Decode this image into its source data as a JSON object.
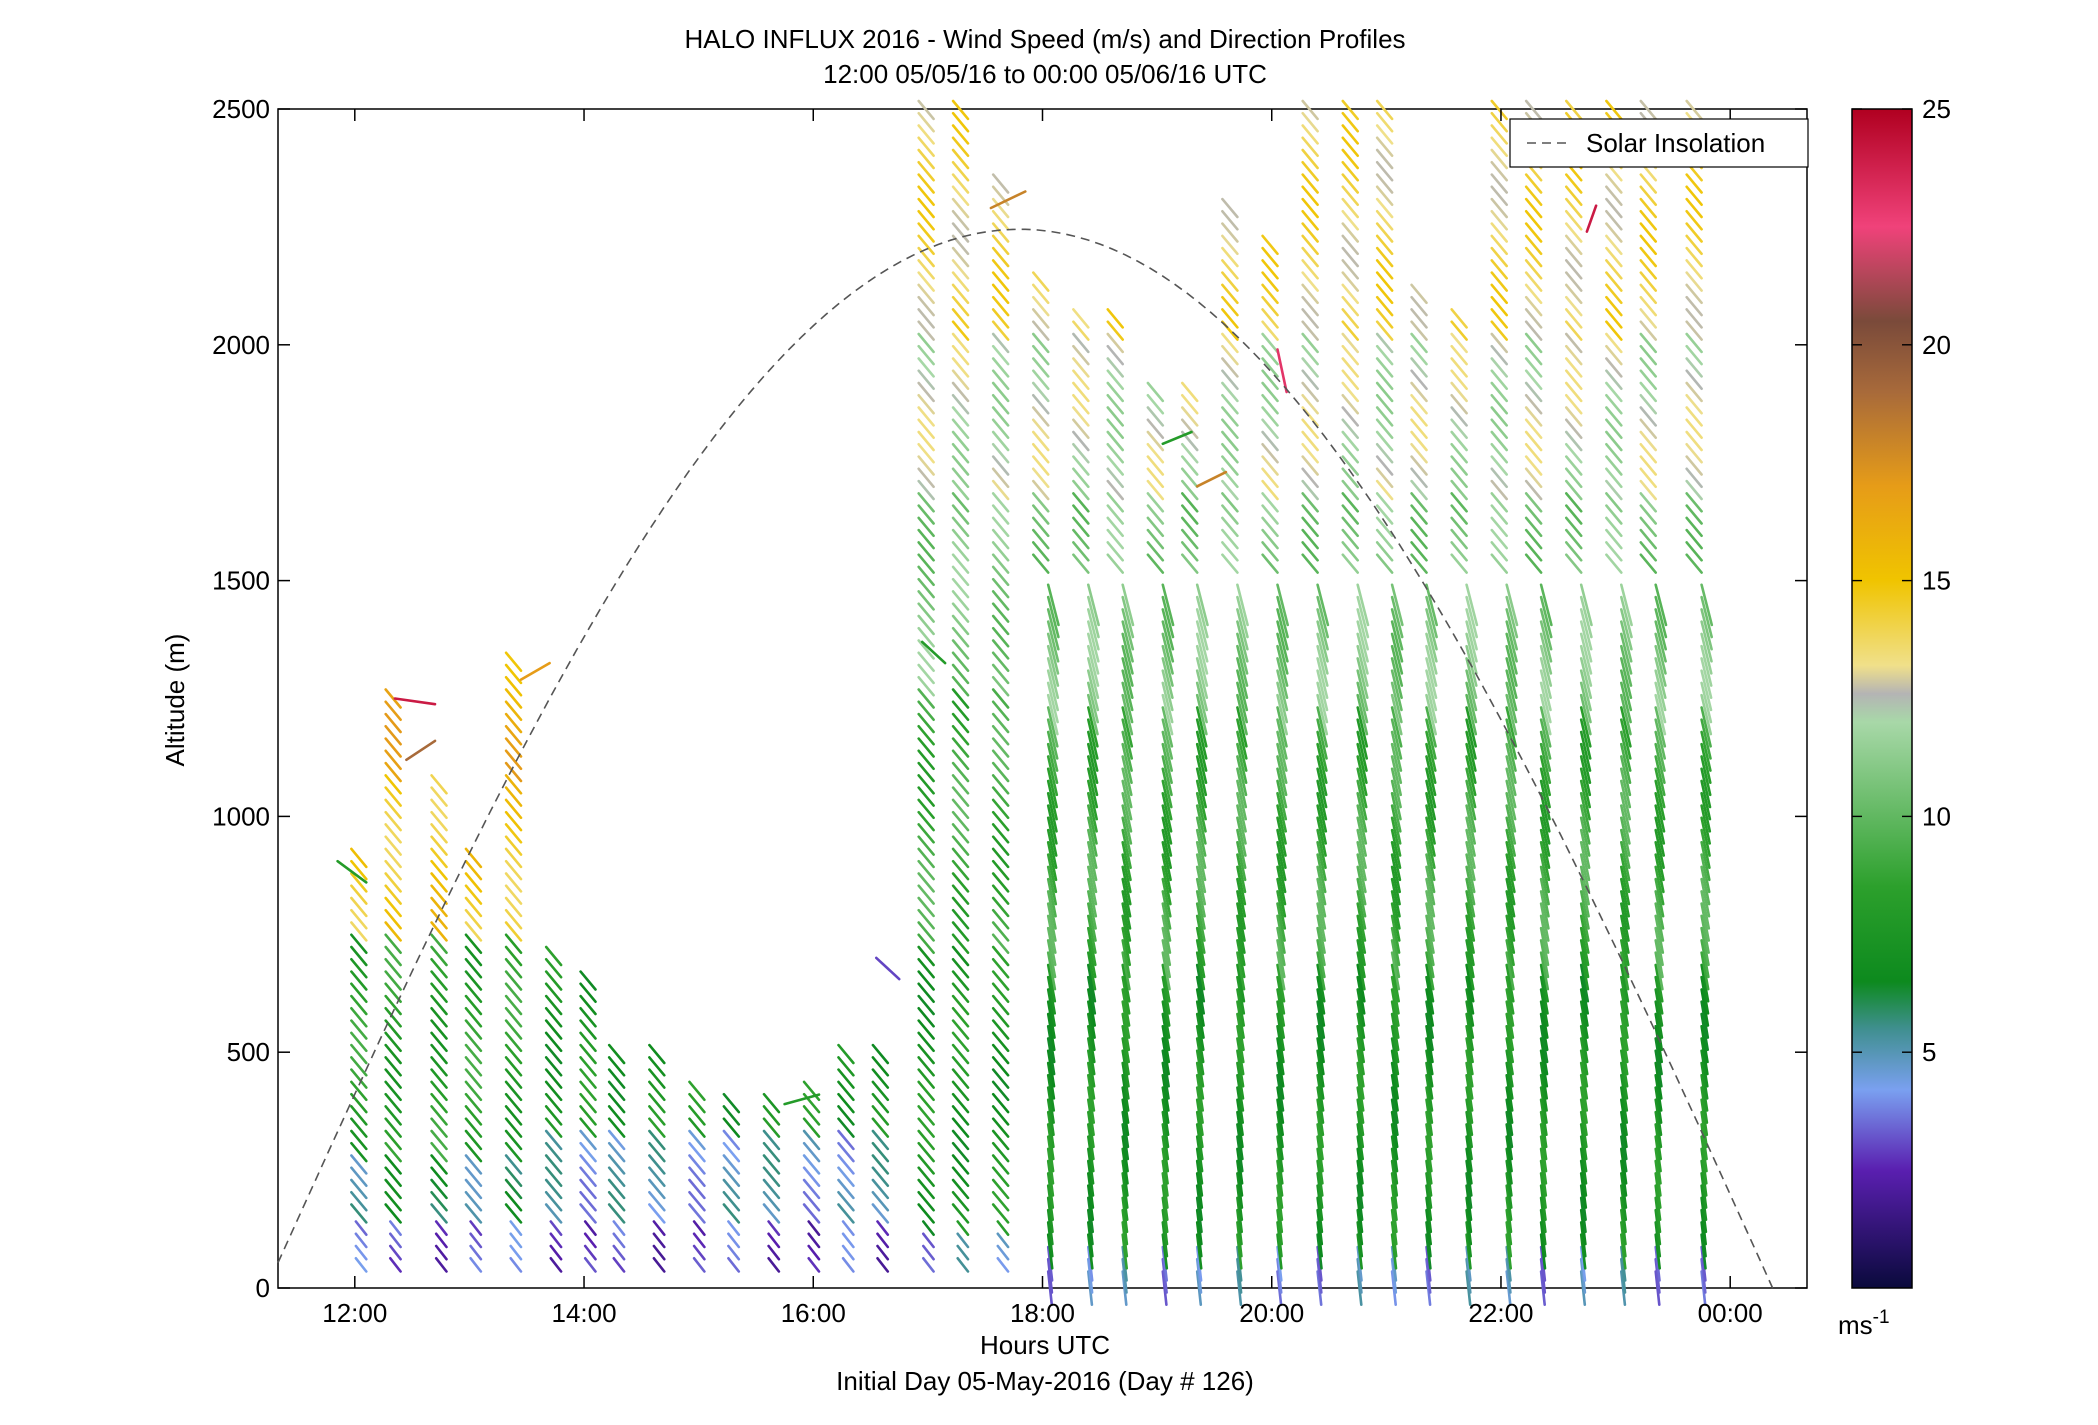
{
  "chart_data": {
    "type": "scatter",
    "title": "HALO INFLUX 2016 - Wind Speed (m/s) and Direction Profiles",
    "subtitle": "12:00 05/05/16 to 00:00 05/06/16  UTC",
    "xlabel": "Hours UTC",
    "xlabel_sub": "Initial Day 05-May-2016 (Day # 126)",
    "ylabel": "Altitude (m)",
    "xlim": [
      11.33,
      24.67
    ],
    "ylim": [
      0,
      2500
    ],
    "x_ticks": [
      12,
      14,
      16,
      18,
      20,
      22,
      24
    ],
    "x_tick_labels": [
      "12:00",
      "14:00",
      "16:00",
      "18:00",
      "20:00",
      "22:00",
      "00:00"
    ],
    "y_ticks": [
      0,
      500,
      1000,
      1500,
      2000,
      2500
    ],
    "y_tick_labels": [
      "0",
      "500",
      "1000",
      "1500",
      "2000",
      "2500"
    ],
    "colorbar": {
      "range": [
        0,
        25
      ],
      "ticks": [
        5,
        10,
        15,
        20,
        25
      ],
      "tick_labels": [
        "5",
        "10",
        "15",
        "20",
        "25"
      ],
      "unit_label": "ms",
      "unit_exponent": "-1",
      "stops": [
        {
          "v": 0,
          "c": "#0a0a3c"
        },
        {
          "v": 2.5,
          "c": "#5a1fb0"
        },
        {
          "v": 4.2,
          "c": "#7aa0f0"
        },
        {
          "v": 5.5,
          "c": "#3f8f8f"
        },
        {
          "v": 6.5,
          "c": "#0d8a1e"
        },
        {
          "v": 8.5,
          "c": "#2ca02c"
        },
        {
          "v": 12.0,
          "c": "#a8d8a8"
        },
        {
          "v": 12.6,
          "c": "#b4b4b4"
        },
        {
          "v": 13.2,
          "c": "#f0e08a"
        },
        {
          "v": 15.0,
          "c": "#f0c400"
        },
        {
          "v": 17.0,
          "c": "#e69c18"
        },
        {
          "v": 19.0,
          "c": "#a86a3a"
        },
        {
          "v": 20.5,
          "c": "#7a4a3a"
        },
        {
          "v": 22.5,
          "c": "#f0427a"
        },
        {
          "v": 25.0,
          "c": "#b00020"
        }
      ]
    },
    "legend": {
      "position": "top-right",
      "entries": [
        "Solar Insolation"
      ]
    },
    "solar_insolation": {
      "peak_x": 17.8,
      "peak_y": 2245,
      "x_start": 11.33,
      "x_end": 24.37,
      "color": "#555555"
    },
    "wind_profiles": [
      {
        "t": 12.1,
        "top": 900
      },
      {
        "t": 12.4,
        "top": 1250
      },
      {
        "t": 12.8,
        "top": 1050
      },
      {
        "t": 13.1,
        "top": 900
      },
      {
        "t": 13.45,
        "top": 1320
      },
      {
        "t": 13.8,
        "top": 700
      },
      {
        "t": 14.1,
        "top": 640
      },
      {
        "t": 14.35,
        "top": 500
      },
      {
        "t": 14.7,
        "top": 480
      },
      {
        "t": 15.05,
        "top": 400
      },
      {
        "t": 15.35,
        "top": 380
      },
      {
        "t": 15.7,
        "top": 380
      },
      {
        "t": 16.05,
        "top": 420
      },
      {
        "t": 16.35,
        "top": 480
      },
      {
        "t": 16.65,
        "top": 500
      },
      {
        "t": 17.05,
        "top": 2500
      },
      {
        "t": 17.35,
        "top": 2500
      },
      {
        "t": 17.7,
        "top": 2330
      },
      {
        "t": 18.05,
        "top": 2120
      },
      {
        "t": 18.4,
        "top": 2050
      },
      {
        "t": 18.7,
        "top": 2040
      },
      {
        "t": 19.05,
        "top": 1900
      },
      {
        "t": 19.35,
        "top": 1900
      },
      {
        "t": 19.7,
        "top": 2280
      },
      {
        "t": 20.05,
        "top": 2200
      },
      {
        "t": 20.4,
        "top": 2500
      },
      {
        "t": 20.75,
        "top": 2500
      },
      {
        "t": 21.05,
        "top": 2500
      },
      {
        "t": 21.35,
        "top": 2100
      },
      {
        "t": 21.7,
        "top": 2050
      },
      {
        "t": 22.05,
        "top": 2500
      },
      {
        "t": 22.35,
        "top": 2500
      },
      {
        "t": 22.7,
        "top": 2500
      },
      {
        "t": 23.05,
        "top": 2500
      },
      {
        "t": 23.35,
        "top": 2500
      },
      {
        "t": 23.75,
        "top": 2500
      }
    ],
    "strays": [
      {
        "x": 11.85,
        "y": 905,
        "dx": 0.25,
        "dy": -45,
        "s": 8
      },
      {
        "x": 12.35,
        "y": 1250,
        "dx": 0.35,
        "dy": -12,
        "s": 24
      },
      {
        "x": 12.45,
        "y": 1120,
        "dx": 0.25,
        "dy": 40,
        "s": 19
      },
      {
        "x": 13.45,
        "y": 1290,
        "dx": 0.25,
        "dy": 35,
        "s": 17
      },
      {
        "x": 16.55,
        "y": 700,
        "dx": 0.2,
        "dy": -45,
        "s": 3
      },
      {
        "x": 16.95,
        "y": 1370,
        "dx": 0.2,
        "dy": -45,
        "s": 8
      },
      {
        "x": 17.55,
        "y": 2290,
        "dx": 0.3,
        "dy": 35,
        "s": 18
      },
      {
        "x": 19.05,
        "y": 1790,
        "dx": 0.25,
        "dy": 25,
        "s": 8
      },
      {
        "x": 19.35,
        "y": 1700,
        "dx": 0.25,
        "dy": 30,
        "s": 18
      },
      {
        "x": 20.05,
        "y": 1990,
        "dx": 0.08,
        "dy": -90,
        "s": 23
      },
      {
        "x": 22.75,
        "y": 2240,
        "dx": 0.08,
        "dy": 55,
        "s": 24
      },
      {
        "x": 15.75,
        "y": 390,
        "dx": 0.3,
        "dy": 20,
        "s": 8
      }
    ]
  }
}
